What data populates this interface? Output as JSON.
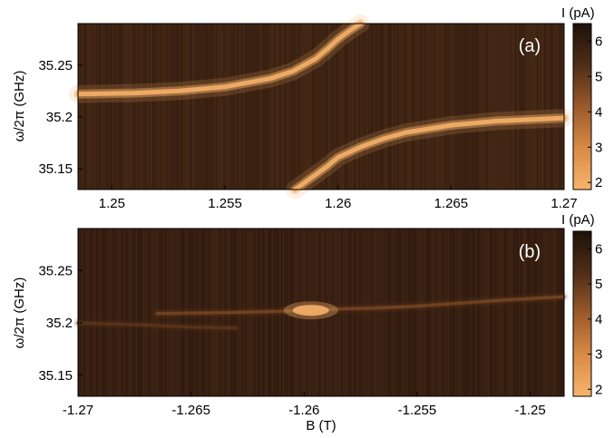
{
  "chart_data": [
    {
      "type": "heatmap",
      "panel_label": "(a)",
      "xlabel": "",
      "ylabel": "ω/2π (GHz)",
      "xlim": [
        1.2485,
        1.27
      ],
      "ylim": [
        35.13,
        35.29
      ],
      "x_ticks": [
        1.25,
        1.255,
        1.26,
        1.265,
        1.27
      ],
      "x_tick_labels": [
        "1.25",
        "1.255",
        "1.26",
        "1.265",
        "1.27"
      ],
      "y_ticks": [
        35.15,
        35.2,
        35.25
      ],
      "y_tick_labels": [
        "35.15",
        "35.2",
        "35.25"
      ],
      "colorbar": {
        "label": "I (pA)",
        "range": [
          1.8,
          6.5
        ],
        "ticks": [
          2,
          3,
          4,
          5,
          6
        ],
        "tick_labels": [
          "2",
          "3",
          "4",
          "5",
          "6"
        ],
        "colormap": [
          "#f6b46c",
          "#d98a46",
          "#9a5a2c",
          "#4f2d17",
          "#1e110a"
        ]
      },
      "background_current": 5.7,
      "features": [
        {
          "name": "upper branch",
          "x": [
            1.2485,
            1.251,
            1.253,
            1.255,
            1.257,
            1.258,
            1.259,
            1.2595,
            1.26,
            1.2605,
            1.261
          ],
          "y": [
            35.222,
            35.223,
            35.225,
            35.229,
            35.237,
            35.244,
            35.256,
            35.265,
            35.275,
            35.283,
            35.29
          ],
          "peak_current": 2.0
        },
        {
          "name": "lower branch",
          "x": [
            1.2581,
            1.2588,
            1.2595,
            1.26,
            1.261,
            1.262,
            1.263,
            1.265,
            1.267,
            1.27
          ],
          "y": [
            35.13,
            35.141,
            35.152,
            35.161,
            35.171,
            35.179,
            35.185,
            35.192,
            35.196,
            35.199
          ],
          "peak_current": 2.0
        }
      ]
    },
    {
      "type": "heatmap",
      "panel_label": "(b)",
      "xlabel": "B (T)",
      "ylabel": "ω/2π (GHz)",
      "xlim": [
        -1.27,
        -1.2485
      ],
      "ylim": [
        35.13,
        35.29
      ],
      "x_ticks": [
        -1.27,
        -1.265,
        -1.26,
        -1.255,
        -1.25
      ],
      "x_tick_labels": [
        "-1.27",
        "-1.265",
        "-1.26",
        "-1.255",
        "-1.25"
      ],
      "y_ticks": [
        35.15,
        35.2,
        35.25
      ],
      "y_tick_labels": [
        "35.15",
        "35.2",
        "35.25"
      ],
      "colorbar": {
        "label": "I (pA)",
        "range": [
          1.8,
          6.5
        ],
        "ticks": [
          2,
          3,
          4,
          5,
          6
        ],
        "tick_labels": [
          "2",
          "3",
          "4",
          "5",
          "6"
        ],
        "colormap": [
          "#f6b46c",
          "#d98a46",
          "#9a5a2c",
          "#4f2d17",
          "#1e110a"
        ]
      },
      "background_current": 5.9,
      "features": [
        {
          "name": "horizontal line",
          "x": [
            -1.2665,
            -1.263,
            -1.261,
            -1.26,
            -1.259,
            -1.257,
            -1.255,
            -1.253,
            -1.251,
            -1.2485
          ],
          "y": [
            35.209,
            35.21,
            35.211,
            35.212,
            35.213,
            35.214,
            35.216,
            35.219,
            35.222,
            35.225
          ],
          "peak_current": 4.5
        },
        {
          "name": "bright spot",
          "x": [
            -1.2597
          ],
          "y": [
            35.212
          ],
          "peak_current": 1.9
        },
        {
          "name": "faint lower line",
          "x": [
            -1.27,
            -1.267,
            -1.265,
            -1.263
          ],
          "y": [
            35.2,
            35.198,
            35.196,
            35.195
          ],
          "peak_current": 5.0
        }
      ]
    }
  ]
}
